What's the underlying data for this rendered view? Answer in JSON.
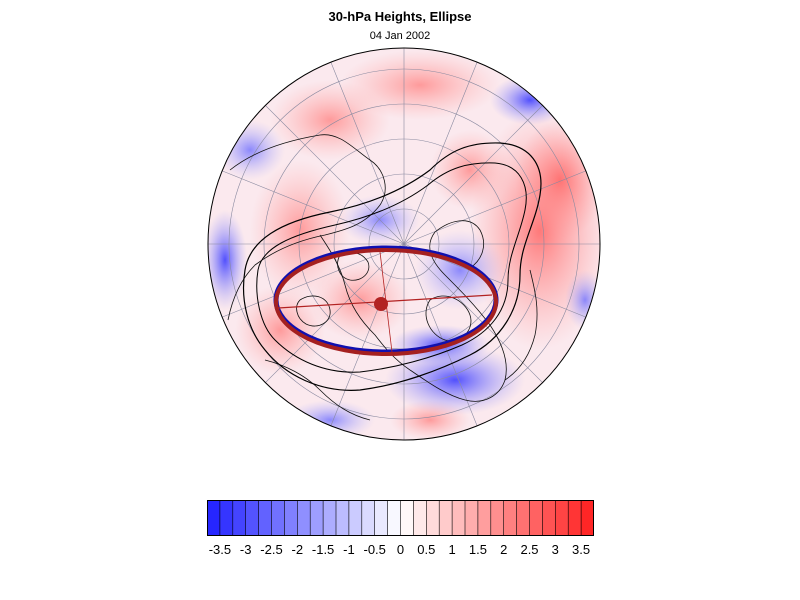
{
  "title": "30-hPa Heights, Ellipse",
  "subtitle": "04 Jan 2002",
  "colorbar": {
    "tick_labels": [
      "-3.5",
      "-3",
      "-2.5",
      "-2",
      "-1.5",
      "-1",
      "-0.5",
      "0",
      "0.5",
      "1",
      "1.5",
      "2",
      "2.5",
      "3",
      "3.5"
    ],
    "min": -3.75,
    "max": 3.75,
    "step": 0.25,
    "colors": {
      "negative_extreme": "#1f1fff",
      "neutral": "#ffffff",
      "positive_extreme": "#ff1f1f"
    }
  },
  "map": {
    "projection": "north polar stereographic",
    "ellipse_observed_color": "#1010b0",
    "ellipse_fitted_color": "#a52020",
    "vortex_center_color": "#b22222"
  }
}
